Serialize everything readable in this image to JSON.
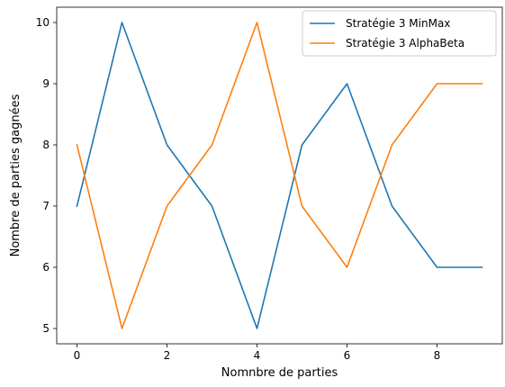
{
  "chart_data": {
    "type": "line",
    "title": "",
    "xlabel": "Nomnbre de parties",
    "ylabel": "Nombre de parties gagnées",
    "x": [
      0,
      1,
      2,
      3,
      4,
      5,
      6,
      7,
      8,
      9
    ],
    "xlim": [
      -0.45,
      9.45
    ],
    "ylim": [
      4.75,
      10.25
    ],
    "xticks": [
      0,
      2,
      4,
      6,
      8
    ],
    "yticks": [
      5,
      6,
      7,
      8,
      9,
      10
    ],
    "grid": false,
    "legend_position": "top-right",
    "series": [
      {
        "name": "Stratégie 3 MinMax",
        "color": "#1f77b4",
        "values": [
          7,
          10,
          8,
          7,
          5,
          8,
          9,
          7,
          6,
          6
        ]
      },
      {
        "name": "Stratégie 3 AlphaBeta",
        "color": "#ff7f0e",
        "values": [
          8,
          5,
          7,
          8,
          10,
          7,
          6,
          8,
          9,
          9
        ]
      }
    ]
  }
}
